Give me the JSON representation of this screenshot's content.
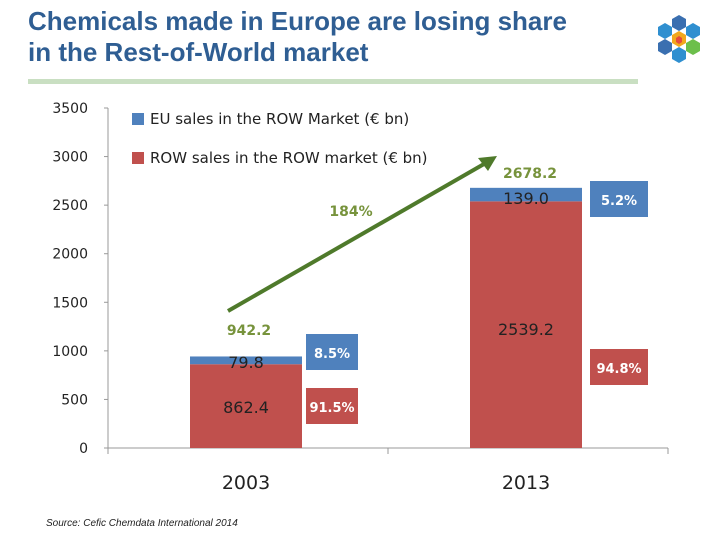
{
  "slide": {
    "title_line1": "Chemicals made in Europe are losing share",
    "title_line2": "in the Rest-of-World market",
    "source": "Source: Cefic Chemdata International 2014"
  },
  "colors": {
    "title": "#2f5e93",
    "eu": "#4f81bd",
    "row": "#c0504d",
    "arrow": "#4f7a2b",
    "total_label": "#77933c",
    "axis_text": "#222222"
  },
  "chart_data": {
    "type": "bar",
    "stacked": true,
    "title": "",
    "xlabel": "",
    "ylabel": "",
    "categories": [
      "2003",
      "2013"
    ],
    "ylim": [
      0,
      3500
    ],
    "yticks": [
      "0",
      "500",
      "1000",
      "1500",
      "2000",
      "2500",
      "3000",
      "3500"
    ],
    "grid": false,
    "legend_position": "top-left",
    "series": [
      {
        "name": "ROW sales in the ROW market  (€ bn)",
        "values": [
          862.4,
          2539.2
        ],
        "labels": [
          "862.4",
          "2539.2"
        ],
        "shares": [
          "91.5%",
          "94.8%"
        ]
      },
      {
        "name": "EU sales in the ROW Market  (€ bn)",
        "values": [
          79.8,
          139.0
        ],
        "labels": [
          "79.8",
          "139.0"
        ],
        "shares": [
          "8.5%",
          "5.2%"
        ]
      }
    ],
    "totals": [
      942.2,
      2678.2
    ],
    "total_labels": [
      "942.2",
      "2678.2"
    ],
    "annotations": [
      {
        "text": "184%",
        "type": "growth-arrow",
        "from": "2003",
        "to": "2013"
      }
    ]
  }
}
